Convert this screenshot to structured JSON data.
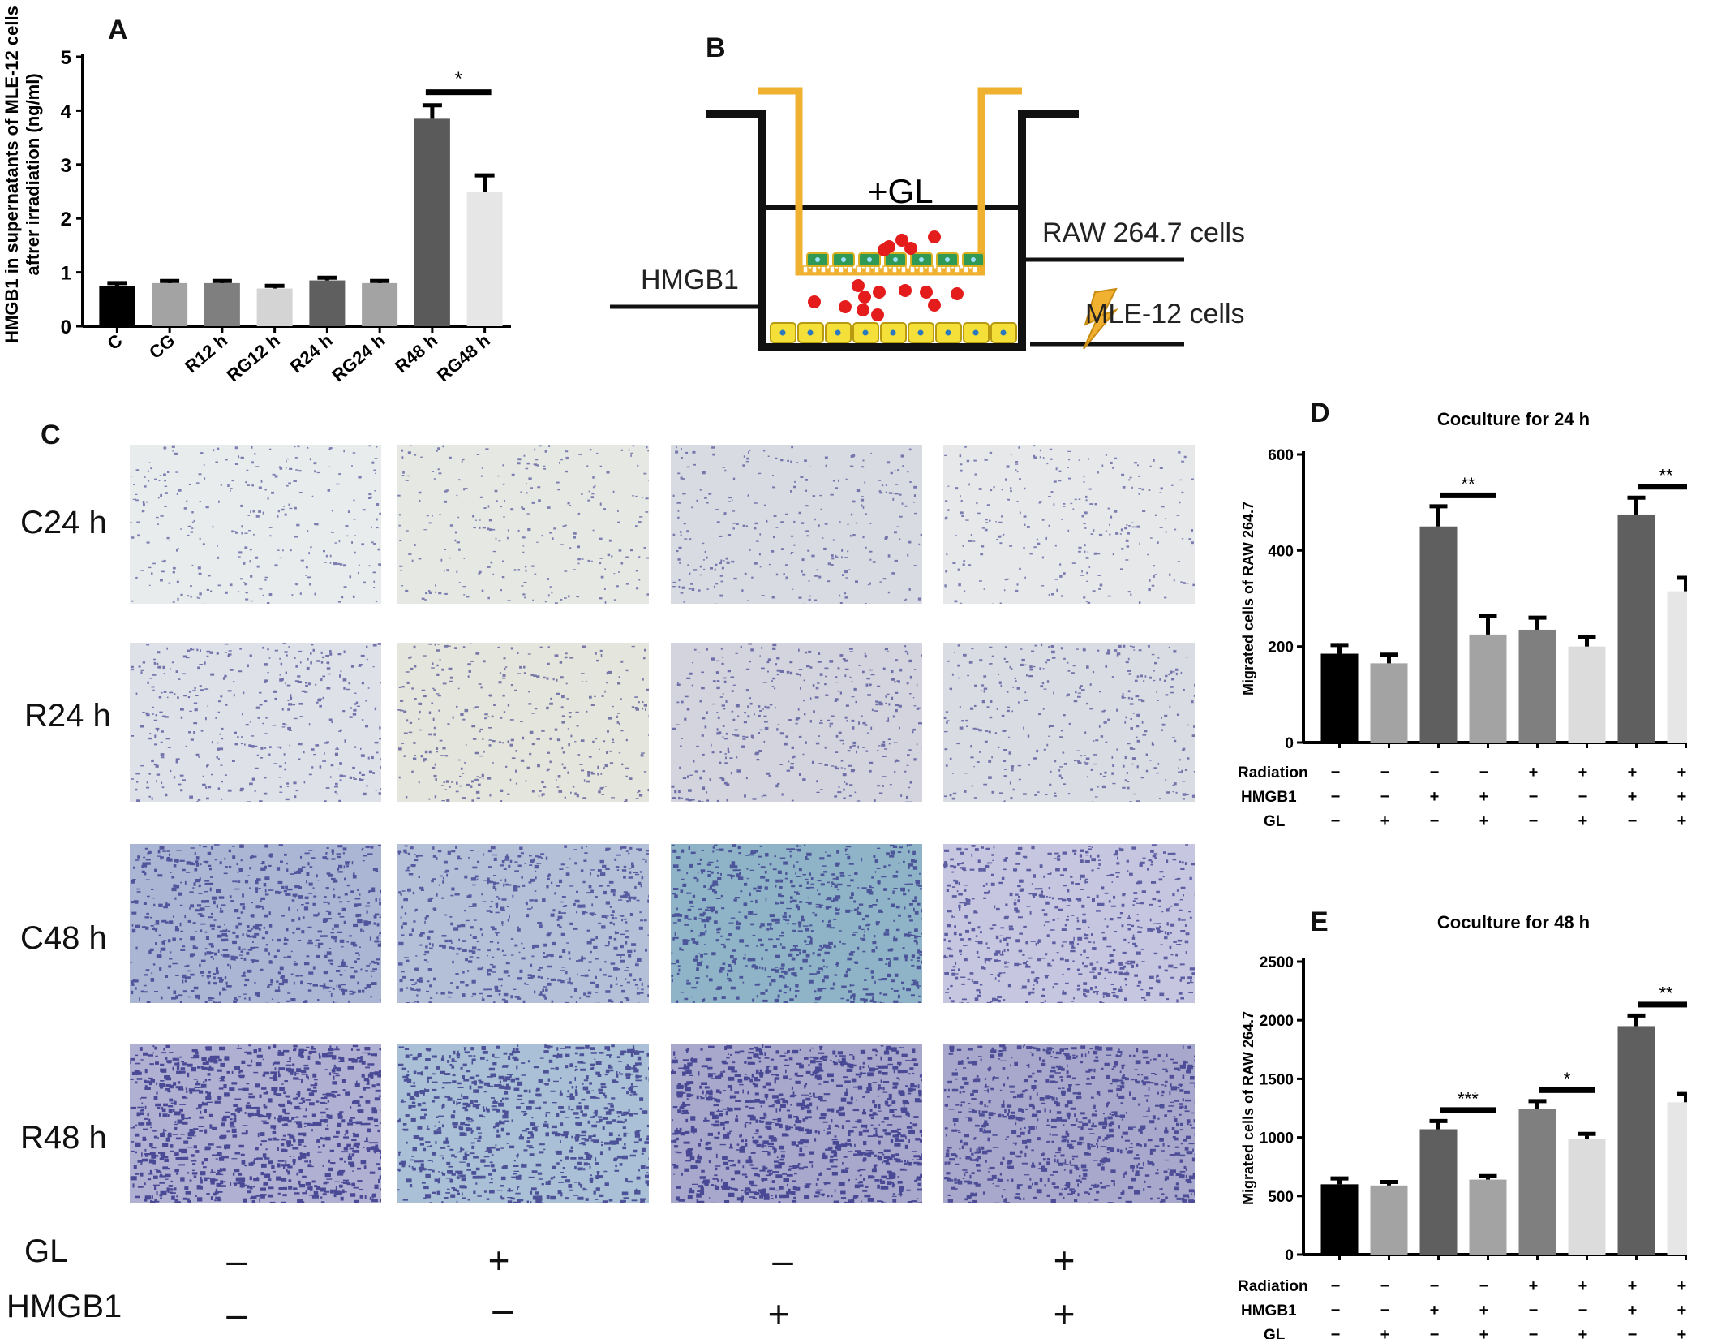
{
  "panels": {
    "A": "A",
    "B": "B",
    "C": "C",
    "D": "D",
    "E": "E"
  },
  "chart_data": [
    {
      "id": "A",
      "type": "bar",
      "ylabel_line1": "HMGB1 in supernatants of MLE-12 cells",
      "ylabel_line2": "aftrer irradiation (ng/ml)",
      "xlabel": "",
      "ylim": [
        0,
        5
      ],
      "yticks": [
        0,
        1,
        2,
        3,
        4,
        5
      ],
      "categories": [
        "C",
        "CG",
        "R12 h",
        "RG12 h",
        "R24 h",
        "RG24 h",
        "R48 h",
        "RG48 h"
      ],
      "values": [
        0.75,
        0.8,
        0.8,
        0.7,
        0.85,
        0.8,
        3.85,
        2.5
      ],
      "errors": [
        0.05,
        0.04,
        0.04,
        0.05,
        0.05,
        0.04,
        0.25,
        0.3
      ],
      "colors": [
        "#000000",
        "#a3a3a3",
        "#7f7f7f",
        "#d4d4d4",
        "#5f5f5f",
        "#a3a3a3",
        "#5a5a5a",
        "#e6e6e6"
      ],
      "significance": [
        {
          "from": 6,
          "to": 7,
          "label": "*"
        }
      ]
    },
    {
      "id": "D",
      "type": "bar",
      "title": "Coculture for 24 h",
      "ylabel": "Migrated cells of RAW  264.7",
      "ylim": [
        0,
        600
      ],
      "yticks": [
        0,
        200,
        400,
        600
      ],
      "values": [
        185,
        165,
        450,
        225,
        235,
        200,
        475,
        315
      ],
      "errors": [
        18,
        18,
        42,
        38,
        25,
        20,
        35,
        28
      ],
      "colors": [
        "#000000",
        "#a3a3a3",
        "#5f5f5f",
        "#a3a3a3",
        "#7f7f7f",
        "#dcdcdc",
        "#5f5f5f",
        "#e6e6e6"
      ],
      "conditions": [
        {
          "label": "Radiation",
          "signs": [
            "−",
            "−",
            "−",
            "−",
            "+",
            "+",
            "+",
            "+"
          ]
        },
        {
          "label": "HMGB1",
          "signs": [
            "−",
            "−",
            "+",
            "+",
            "−",
            "−",
            "+",
            "+"
          ]
        },
        {
          "label": "GL",
          "signs": [
            "−",
            "+",
            "−",
            "+",
            "−",
            "+",
            "−",
            "+"
          ]
        }
      ],
      "significance": [
        {
          "from": 2,
          "to": 3,
          "label": "**"
        },
        {
          "from": 6,
          "to": 7,
          "label": "**"
        }
      ]
    },
    {
      "id": "E",
      "type": "bar",
      "title": "Coculture for 48 h",
      "ylabel": "Migrated cells of RAW  264.7",
      "ylim": [
        0,
        2500
      ],
      "yticks": [
        0,
        500,
        1000,
        1500,
        2000,
        2500
      ],
      "values": [
        600,
        590,
        1070,
        640,
        1240,
        990,
        1950,
        1300
      ],
      "errors": [
        50,
        30,
        70,
        30,
        70,
        40,
        90,
        70
      ],
      "colors": [
        "#000000",
        "#a3a3a3",
        "#5f5f5f",
        "#a3a3a3",
        "#7f7f7f",
        "#dcdcdc",
        "#5f5f5f",
        "#e6e6e6"
      ],
      "conditions": [
        {
          "label": "Radiation",
          "signs": [
            "−",
            "−",
            "−",
            "−",
            "+",
            "+",
            "+",
            "+"
          ]
        },
        {
          "label": "HMGB1",
          "signs": [
            "−",
            "−",
            "+",
            "+",
            "−",
            "−",
            "+",
            "+"
          ]
        },
        {
          "label": "GL",
          "signs": [
            "−",
            "+",
            "−",
            "+",
            "−",
            "+",
            "−",
            "+"
          ]
        }
      ],
      "significance": [
        {
          "from": 2,
          "to": 3,
          "label": "***"
        },
        {
          "from": 4,
          "to": 5,
          "label": "*"
        },
        {
          "from": 6,
          "to": 7,
          "label": "**"
        }
      ]
    }
  ],
  "diagram": {
    "insert_label": "+GL",
    "raw_label": "RAW 264.7 cells",
    "hmgb1_label": "HMGB1",
    "mle_label": "MLE-12 cells"
  },
  "micrographs": {
    "rows": [
      "C24 h",
      "R24 h",
      "C48 h",
      "R48 h"
    ],
    "density": [
      0.18,
      0.3,
      0.62,
      0.88
    ],
    "gl_label": "GL",
    "hmgb1_label": "HMGB1",
    "gl_signs": [
      "–",
      "+",
      "–",
      "+"
    ],
    "hmgb1_signs": [
      "–",
      "–",
      "+",
      "+"
    ]
  },
  "colors": {
    "insert": "#f0b030",
    "cell": "#f4e038",
    "raw_cell": "#2f9a55",
    "hmgb1_dot": "#e41c1c",
    "stain": "#3a3a8c"
  }
}
